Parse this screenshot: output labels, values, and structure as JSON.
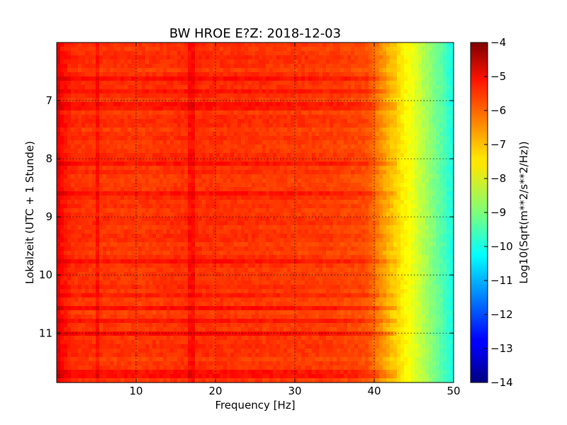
{
  "chart_data": {
    "type": "heatmap",
    "title": "BW HROE E?Z: 2018-12-03",
    "xlabel": "Frequency [Hz]",
    "ylabel": "Lokalzeit (UTC + 1 Stunde)",
    "xlim": [
      0,
      50
    ],
    "ylim": [
      6.0,
      11.85
    ],
    "y_inverted": true,
    "x_ticks": [
      10,
      20,
      30,
      40,
      50
    ],
    "x_tick_labels": [
      "10",
      "20",
      "30",
      "40",
      "50"
    ],
    "y_ticks": [
      7,
      8,
      9,
      10,
      11
    ],
    "y_tick_labels": [
      "7",
      "8",
      "9",
      "10",
      "11"
    ],
    "grid": true,
    "colormap": "jet",
    "colorbar": {
      "label": "Log10(Sqrt(m**2/s**2/Hz))",
      "range": [
        -14,
        -4
      ],
      "ticks": [
        -4,
        -5,
        -6,
        -7,
        -8,
        -9,
        -10,
        -11,
        -12,
        -13,
        -14
      ],
      "tick_labels": [
        "−4",
        "−5",
        "−6",
        "−7",
        "−8",
        "−9",
        "−10",
        "−11",
        "−12",
        "−13",
        "−14"
      ]
    },
    "spectral_profile": {
      "frequency_hz": [
        0,
        0.5,
        2,
        5,
        10,
        17,
        25,
        35,
        39,
        40,
        41,
        42,
        43,
        44,
        45,
        46,
        47,
        48,
        49,
        50
      ],
      "log_amplitude": [
        -4.8,
        -5.3,
        -5.7,
        -5.75,
        -5.8,
        -5.7,
        -5.75,
        -5.85,
        -6.0,
        -6.3,
        -6.7,
        -7.1,
        -7.4,
        -7.7,
        -8.0,
        -8.4,
        -8.8,
        -9.2,
        -9.6,
        -10.1
      ]
    },
    "spectral_lines_hz": [
      5,
      16.7,
      17.1
    ],
    "event_bands_hour": [
      6.6,
      6.85,
      7.1,
      8.1,
      8.6,
      9.75,
      10.35,
      10.55,
      10.8,
      11.0,
      11.7
    ]
  }
}
